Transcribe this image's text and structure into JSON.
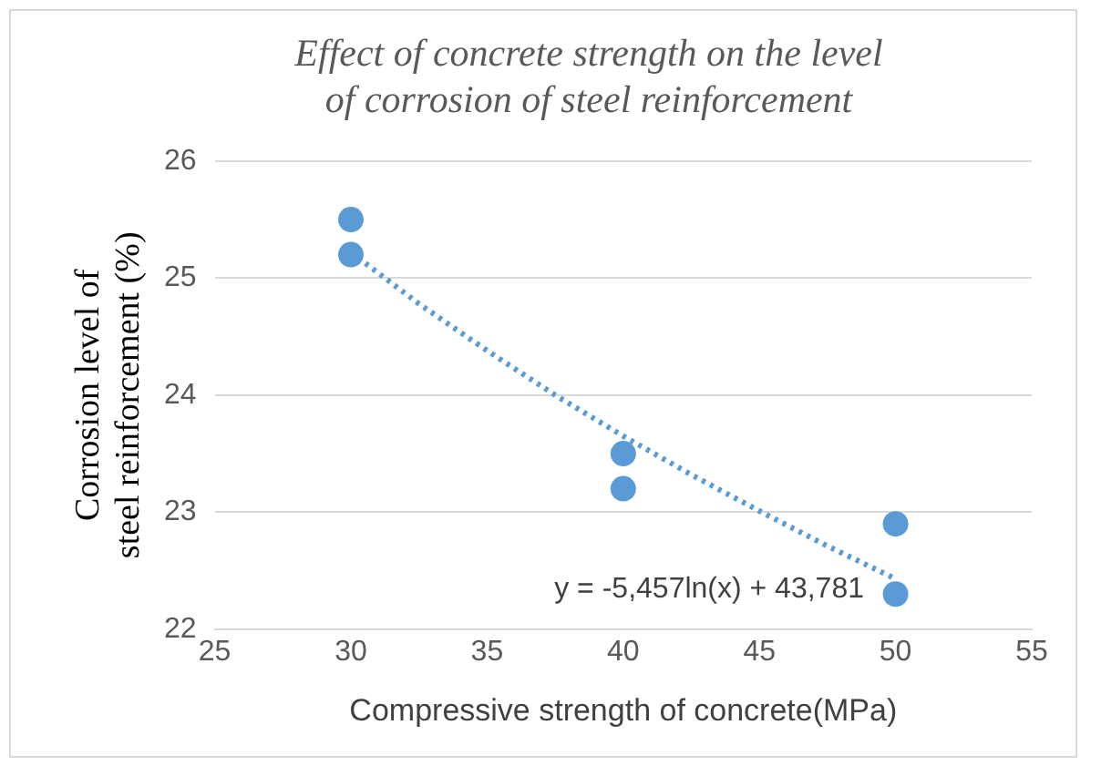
{
  "chart_data": {
    "type": "scatter",
    "title": "Effect of concrete strength on the level of corrosion of steel reinforcement",
    "xlabel": "Compressive strength of concrete(MPa)",
    "ylabel": "Corrosion level of steel reinforcement (%)",
    "series": [
      {
        "type": "scatter",
        "color": "#5b9bd5",
        "x": [
          30,
          30,
          40,
          40,
          50,
          50
        ],
        "values": [
          25.5,
          25.2,
          23.5,
          23.2,
          22.9,
          22.3
        ],
        "marker": "circle"
      },
      {
        "type": "line",
        "color": "#5b9bd5",
        "line_style": "dotted",
        "marker": "none",
        "x": [
          30,
          32.5,
          35,
          37.5,
          40,
          42.5,
          45,
          47.5,
          50
        ],
        "values": [
          25.22,
          24.78,
          24.38,
          24.0,
          23.65,
          23.32,
          23.01,
          22.71,
          22.43
        ]
      }
    ],
    "xlim": [
      25,
      55
    ],
    "xticks": [
      25,
      30,
      35,
      40,
      45,
      50,
      55
    ],
    "ylim": [
      22,
      26
    ],
    "yticks": [
      22,
      23,
      24,
      25,
      26
    ],
    "grid": "y",
    "legend": false,
    "annotations": [
      "y = -5,457ln(x) + 43,781"
    ]
  }
}
